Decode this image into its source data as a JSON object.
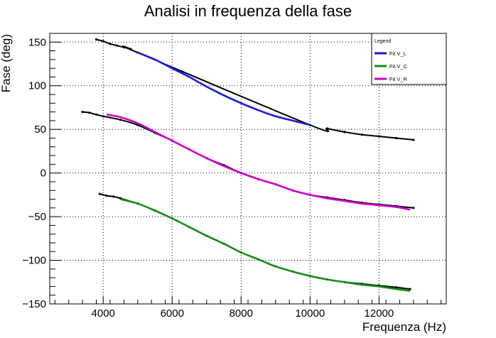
{
  "chart_data": {
    "type": "line",
    "title": "Analisi in frequenza della fase",
    "xlabel": "Frequenza (Hz)",
    "ylabel": "Fase (deg)",
    "xlim": [
      2450,
      13950
    ],
    "ylim": [
      -150,
      160
    ],
    "x_ticks": [
      4000,
      6000,
      8000,
      10000,
      12000
    ],
    "x_tick_labels": [
      "4000",
      "6000",
      "8000",
      "10000",
      "12000"
    ],
    "y_ticks": [
      -150,
      -100,
      -50,
      0,
      50,
      100,
      150
    ],
    "y_tick_labels": [
      "−150",
      "−100",
      "−50",
      "0",
      "50",
      "100",
      "150"
    ],
    "grid": true,
    "legend": {
      "title": "Legend",
      "position": "top-right"
    },
    "series": [
      {
        "name": "Fit V_L",
        "color": "#1a1adb",
        "kind": "fit",
        "x": [
          5000,
          5500,
          6000,
          6500,
          7000,
          7500,
          8000,
          8500,
          9000,
          9500,
          10000
        ],
        "y": [
          138,
          130,
          120,
          110,
          99,
          89,
          80,
          72,
          65,
          60,
          55
        ]
      },
      {
        "name": "Fit V_C",
        "color": "#1a8c1a",
        "kind": "fit",
        "x": [
          4500,
          5000,
          5500,
          6000,
          6500,
          7000,
          7500,
          8000,
          8500,
          9000,
          9500,
          10000,
          10500,
          11000,
          11500,
          12000,
          12500,
          12900
        ],
        "y": [
          -30,
          -35,
          -43,
          -52,
          -62,
          -72,
          -81,
          -91,
          -99,
          -107,
          -113,
          -118,
          -122,
          -125,
          -128,
          -130,
          -133,
          -135
        ]
      },
      {
        "name": "Fit V_R",
        "color": "#cc00cc",
        "kind": "fit",
        "x": [
          4100,
          4500,
          5000,
          5500,
          6000,
          6500,
          7000,
          7500,
          8000,
          8500,
          9000,
          9500,
          10000,
          10500,
          11000,
          11500,
          12000,
          12500,
          12900
        ],
        "y": [
          67,
          64,
          57,
          47,
          37,
          27,
          17,
          8,
          0,
          -7,
          -13,
          -20,
          -25,
          -29,
          -32,
          -35,
          -37,
          -39,
          -42
        ]
      },
      {
        "name": "",
        "color": "#000000",
        "kind": "data",
        "x": [
          3800,
          4000,
          4200,
          4400,
          4600,
          4800,
          5000,
          10000,
          10500,
          11000,
          11500,
          12000,
          12500,
          13000
        ],
        "y": [
          153,
          151,
          148,
          146,
          144,
          142,
          138,
          55,
          51,
          47,
          44,
          42,
          40,
          38
        ]
      },
      {
        "name": "",
        "color": "#000000",
        "kind": "data",
        "x": [
          3400,
          3600,
          3800,
          4000,
          4500,
          5000,
          5500,
          6000,
          6500,
          7000,
          7500,
          8000,
          8500,
          9000,
          9500,
          10000,
          10500,
          11000,
          11500,
          12000,
          12500,
          13000
        ],
        "y": [
          70,
          69,
          67,
          65,
          61,
          55,
          46,
          37,
          27,
          17,
          9,
          0,
          -7,
          -13,
          -20,
          -25,
          -28,
          -31,
          -34,
          -36,
          -38,
          -40
        ]
      },
      {
        "name": "",
        "color": "#000000",
        "kind": "data",
        "x": [
          3900,
          4100,
          4300,
          4500,
          5000,
          5500,
          6000,
          6500,
          7000,
          7500,
          8000,
          8500,
          9000,
          9500,
          10000,
          10500,
          11000,
          11500,
          12000,
          12500,
          12900
        ],
        "y": [
          -24,
          -26,
          -27,
          -29,
          -35,
          -43,
          -52,
          -62,
          -72,
          -81,
          -91,
          -99,
          -107,
          -113,
          -118,
          -122,
          -125,
          -127,
          -129,
          -131,
          -133
        ]
      }
    ]
  }
}
